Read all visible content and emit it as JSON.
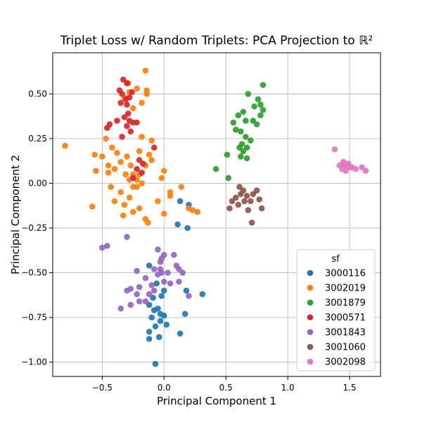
{
  "chart_data": {
    "type": "scatter",
    "title": "Triplet Loss w/ Random Triplets: PCA Projection to ℝ²",
    "xlabel": "Principal Component 1",
    "ylabel": "Principal Component 2",
    "xlim": [
      -0.9,
      1.75
    ],
    "ylim": [
      -1.08,
      0.73
    ],
    "xticks": [
      -0.5,
      0.0,
      0.5,
      1.0,
      1.5
    ],
    "xtick_labels": [
      "−0.5",
      "0.0",
      "0.5",
      "1.0",
      "1.5"
    ],
    "yticks": [
      -1.0,
      -0.75,
      -0.5,
      -0.25,
      0.0,
      0.25,
      0.5
    ],
    "ytick_labels": [
      "−1.00",
      "−0.75",
      "−0.50",
      "−0.25",
      "0.00",
      "0.25",
      "0.50"
    ],
    "grid": true,
    "legend": {
      "title": "sf",
      "placement": "lower-right"
    },
    "series": [
      {
        "name": "3000116",
        "color": "#1f77b4",
        "points": [
          [
            -0.12,
            -0.46
          ],
          [
            -0.06,
            -0.56
          ],
          [
            0.0,
            -0.6
          ],
          [
            -0.09,
            -0.64
          ],
          [
            -0.12,
            -0.68
          ],
          [
            -0.05,
            -0.7
          ],
          [
            -0.03,
            -0.73
          ],
          [
            0.0,
            -0.74
          ],
          [
            -0.1,
            -0.75
          ],
          [
            -0.03,
            -0.77
          ],
          [
            0.02,
            -0.79
          ],
          [
            -0.07,
            -0.8
          ],
          [
            -0.12,
            -0.83
          ],
          [
            -0.04,
            -0.86
          ],
          [
            -0.12,
            -0.87
          ],
          [
            -0.07,
            -1.01
          ],
          [
            0.13,
            -0.84
          ],
          [
            0.17,
            -0.73
          ],
          [
            0.18,
            -0.6
          ],
          [
            0.31,
            -0.62
          ],
          [
            0.13,
            -0.1
          ],
          [
            0.2,
            -0.12
          ],
          [
            0.11,
            -0.23
          ],
          [
            0.19,
            -0.25
          ],
          [
            -0.08,
            -0.71
          ],
          [
            -0.02,
            -0.63
          ]
        ]
      },
      {
        "name": "3002019",
        "color": "#ff7f0e",
        "points": [
          [
            -0.8,
            0.21
          ],
          [
            -0.56,
            0.16
          ],
          [
            -0.55,
            0.07
          ],
          [
            -0.47,
            0.25
          ],
          [
            -0.5,
            0.15
          ],
          [
            -0.42,
            0.2
          ],
          [
            -0.38,
            0.17
          ],
          [
            -0.45,
            0.1
          ],
          [
            -0.4,
            0.08
          ],
          [
            -0.35,
            0.12
          ],
          [
            -0.3,
            0.15
          ],
          [
            -0.27,
            0.1
          ],
          [
            -0.25,
            0.05
          ],
          [
            -0.28,
            0.02
          ],
          [
            -0.22,
            -0.02
          ],
          [
            -0.18,
            0.0
          ],
          [
            -0.15,
            0.1
          ],
          [
            -0.12,
            0.16
          ],
          [
            -0.1,
            0.13
          ],
          [
            -0.35,
            -0.05
          ],
          [
            -0.32,
            -0.12
          ],
          [
            -0.28,
            -0.08
          ],
          [
            -0.25,
            -0.16
          ],
          [
            -0.2,
            -0.14
          ],
          [
            -0.15,
            -0.2
          ],
          [
            -0.13,
            -0.22
          ],
          [
            -0.05,
            -0.1
          ],
          [
            0.0,
            -0.17
          ],
          [
            0.05,
            -0.07
          ],
          [
            -0.02,
            0.03
          ],
          [
            0.0,
            0.07
          ],
          [
            -0.1,
            0.24
          ],
          [
            -0.18,
            0.26
          ],
          [
            -0.32,
            0.48
          ],
          [
            -0.29,
            0.56
          ],
          [
            -0.22,
            0.53
          ],
          [
            -0.18,
            0.45
          ],
          [
            -0.14,
            0.5
          ],
          [
            -0.28,
            0.51
          ],
          [
            -0.25,
            0.42
          ],
          [
            -0.15,
            0.63
          ],
          [
            -0.14,
            0.52
          ],
          [
            -0.4,
            -0.1
          ],
          [
            -0.43,
            -0.02
          ],
          [
            -0.45,
            0.06
          ],
          [
            -0.31,
            0.05
          ],
          [
            -0.2,
            0.18
          ],
          [
            0.2,
            -0.14
          ],
          [
            0.23,
            -0.15
          ],
          [
            0.27,
            -0.16
          ],
          [
            0.14,
            -0.02
          ],
          [
            0.05,
            -0.05
          ],
          [
            -0.58,
            -0.13
          ],
          [
            -0.2,
            0.05
          ],
          [
            -0.33,
            -0.18
          ],
          [
            -0.25,
            -0.02
          ],
          [
            -0.22,
            0.02
          ]
        ]
      },
      {
        "name": "3001879",
        "color": "#2ca02c",
        "points": [
          [
            0.8,
            0.55
          ],
          [
            0.68,
            0.5
          ],
          [
            0.76,
            0.47
          ],
          [
            0.73,
            0.43
          ],
          [
            0.8,
            0.41
          ],
          [
            0.64,
            0.4
          ],
          [
            0.6,
            0.38
          ],
          [
            0.78,
            0.38
          ],
          [
            0.66,
            0.35
          ],
          [
            0.72,
            0.35
          ],
          [
            0.56,
            0.34
          ],
          [
            0.75,
            0.33
          ],
          [
            0.62,
            0.29
          ],
          [
            0.66,
            0.26
          ],
          [
            0.7,
            0.24
          ],
          [
            0.63,
            0.22
          ],
          [
            0.67,
            0.2
          ],
          [
            0.61,
            0.2
          ],
          [
            0.64,
            0.18
          ],
          [
            0.62,
            0.15
          ],
          [
            0.67,
            0.14
          ],
          [
            0.51,
            0.16
          ],
          [
            0.42,
            0.08
          ],
          [
            0.52,
            0.03
          ],
          [
            0.78,
            0.44
          ],
          [
            0.58,
            0.3
          ]
        ]
      },
      {
        "name": "3000571",
        "color": "#d62728",
        "points": [
          [
            -0.33,
            0.58
          ],
          [
            -0.3,
            0.56
          ],
          [
            -0.36,
            0.52
          ],
          [
            -0.34,
            0.5
          ],
          [
            -0.31,
            0.47
          ],
          [
            -0.28,
            0.48
          ],
          [
            -0.35,
            0.45
          ],
          [
            -0.3,
            0.44
          ],
          [
            -0.26,
            0.51
          ],
          [
            -0.32,
            0.37
          ],
          [
            -0.28,
            0.35
          ],
          [
            -0.25,
            0.34
          ],
          [
            -0.3,
            0.32
          ],
          [
            -0.22,
            0.34
          ],
          [
            -0.27,
            0.29
          ],
          [
            -0.34,
            0.26
          ],
          [
            -0.44,
            0.33
          ],
          [
            -0.46,
            0.31
          ],
          [
            -0.2,
            0.13
          ],
          [
            -0.17,
            0.11
          ],
          [
            -0.22,
            0.08
          ],
          [
            -0.18,
            0.06
          ],
          [
            -0.25,
            0.03
          ],
          [
            -0.08,
            0.2
          ],
          [
            -0.38,
            0.35
          ],
          [
            -0.29,
            0.39
          ]
        ]
      },
      {
        "name": "3001843",
        "color": "#9467bd",
        "points": [
          [
            -0.5,
            -0.36
          ],
          [
            -0.46,
            -0.35
          ],
          [
            -0.3,
            -0.3
          ],
          [
            -0.05,
            -0.37
          ],
          [
            -0.03,
            -0.44
          ],
          [
            -0.08,
            -0.48
          ],
          [
            -0.02,
            -0.5
          ],
          [
            0.03,
            -0.5
          ],
          [
            0.1,
            -0.46
          ],
          [
            0.12,
            -0.48
          ],
          [
            0.15,
            -0.5
          ],
          [
            -0.22,
            -0.49
          ],
          [
            -0.15,
            -0.53
          ],
          [
            -0.2,
            -0.58
          ],
          [
            -0.27,
            -0.59
          ],
          [
            -0.22,
            -0.62
          ],
          [
            -0.2,
            -0.66
          ],
          [
            -0.27,
            -0.68
          ],
          [
            -0.35,
            -0.7
          ],
          [
            -0.15,
            -0.66
          ],
          [
            -0.08,
            -0.6
          ],
          [
            0.0,
            -0.55
          ],
          [
            0.05,
            -0.56
          ],
          [
            0.12,
            -0.55
          ],
          [
            0.2,
            -0.63
          ],
          [
            -0.05,
            -0.51
          ],
          [
            -0.1,
            -0.57
          ],
          [
            0.08,
            -0.4
          ],
          [
            -0.02,
            -0.42
          ],
          [
            -0.3,
            -0.6
          ],
          [
            -0.12,
            -0.62
          ],
          [
            -0.03,
            -0.48
          ],
          [
            0.0,
            -0.4
          ]
        ]
      },
      {
        "name": "3001060",
        "color": "#8c564b",
        "points": [
          [
            0.75,
            -0.04
          ],
          [
            0.72,
            -0.06
          ],
          [
            0.67,
            -0.07
          ],
          [
            0.62,
            -0.06
          ],
          [
            0.58,
            -0.08
          ],
          [
            0.55,
            -0.1
          ],
          [
            0.6,
            -0.12
          ],
          [
            0.65,
            -0.1
          ],
          [
            0.7,
            -0.1
          ],
          [
            0.77,
            -0.09
          ],
          [
            0.79,
            -0.14
          ],
          [
            0.68,
            -0.15
          ],
          [
            0.53,
            -0.14
          ],
          [
            0.71,
            -0.22
          ],
          [
            0.64,
            -0.04
          ],
          [
            0.61,
            -0.02
          ]
        ]
      },
      {
        "name": "3002098",
        "color": "#e377c2",
        "points": [
          [
            1.38,
            0.19
          ],
          [
            1.42,
            0.1
          ],
          [
            1.45,
            0.11
          ],
          [
            1.47,
            0.1
          ],
          [
            1.49,
            0.11
          ],
          [
            1.5,
            0.09
          ],
          [
            1.44,
            0.08
          ],
          [
            1.47,
            0.07
          ],
          [
            1.52,
            0.09
          ],
          [
            1.55,
            0.08
          ],
          [
            1.6,
            0.09
          ],
          [
            1.63,
            0.07
          ],
          [
            1.45,
            0.12
          ]
        ]
      }
    ]
  }
}
